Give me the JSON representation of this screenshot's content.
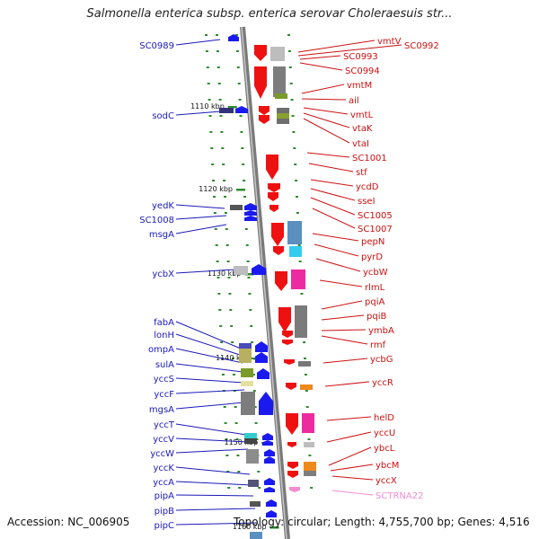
{
  "title": "Salmonella enterica subsp. enterica serovar Choleraesuis str...",
  "footer": {
    "accession": "Accession: NC_006905",
    "topology": "Topology: circular; Length: 4,755,700 bp; Genes: 4,516"
  },
  "colors": {
    "left_label": "#1a1ab8",
    "right_label": "#cc1111",
    "rna_label": "#f08ccf",
    "tick": "#2e8b2e"
  },
  "kbp_labels": [
    "1110 kbp",
    "1120 kbp",
    "1130 kbp",
    "1140 kbp",
    "1150 kbp",
    "1160 kbp"
  ],
  "left_genes": [
    "SC0989",
    "sodC",
    "yedK",
    "SC1008",
    "msgA",
    "ycbX",
    "fabA",
    "lonH",
    "ompA",
    "sulA",
    "yccS",
    "yccF",
    "mgsA",
    "yccT",
    "yccV",
    "yccW",
    "yccK",
    "yccA",
    "pipA",
    "pipB",
    "pipC"
  ],
  "right_genes": [
    "vmtV",
    "SC0992",
    "SC0993",
    "SC0994",
    "vmtM",
    "ail",
    "vmtL",
    "vtaK",
    "vtaI",
    "SC1001",
    "stf",
    "ycdD",
    "sseI",
    "SC1005",
    "SC1007",
    "pepN",
    "pyrD",
    "ycbW",
    "rlmL",
    "pqiA",
    "pqiB",
    "ymbA",
    "rmf",
    "ycbG",
    "yccR",
    "helD",
    "yccU",
    "ybcL",
    "ybcM",
    "yccX"
  ],
  "rna_genes": [
    "SCTRNA22"
  ]
}
